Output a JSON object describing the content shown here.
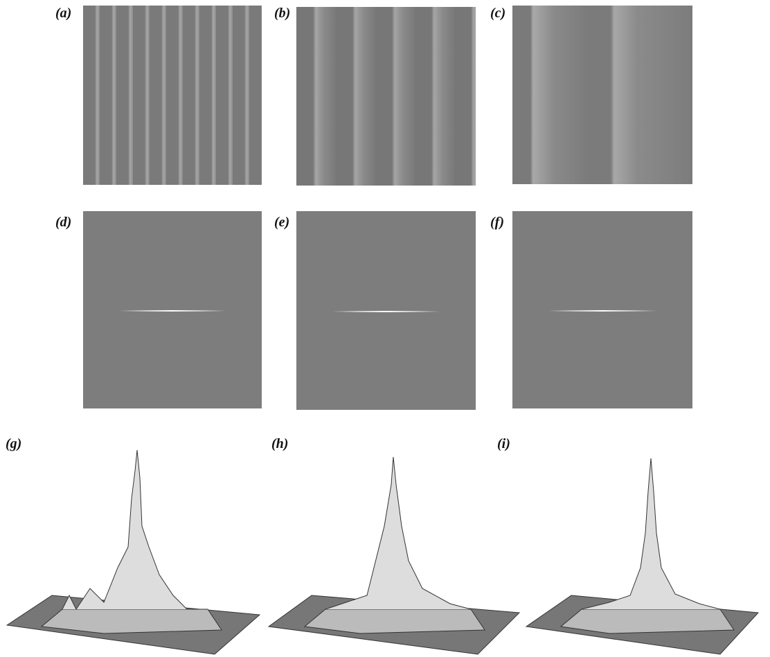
{
  "panels": [
    {
      "label": "(a)"
    },
    {
      "label": "(b)"
    },
    {
      "label": "(c)"
    },
    {
      "label": "(d)"
    },
    {
      "label": "(e)"
    },
    {
      "label": "(f)"
    },
    {
      "label": "(g)"
    },
    {
      "label": "(h)"
    },
    {
      "label": "(i)"
    }
  ]
}
